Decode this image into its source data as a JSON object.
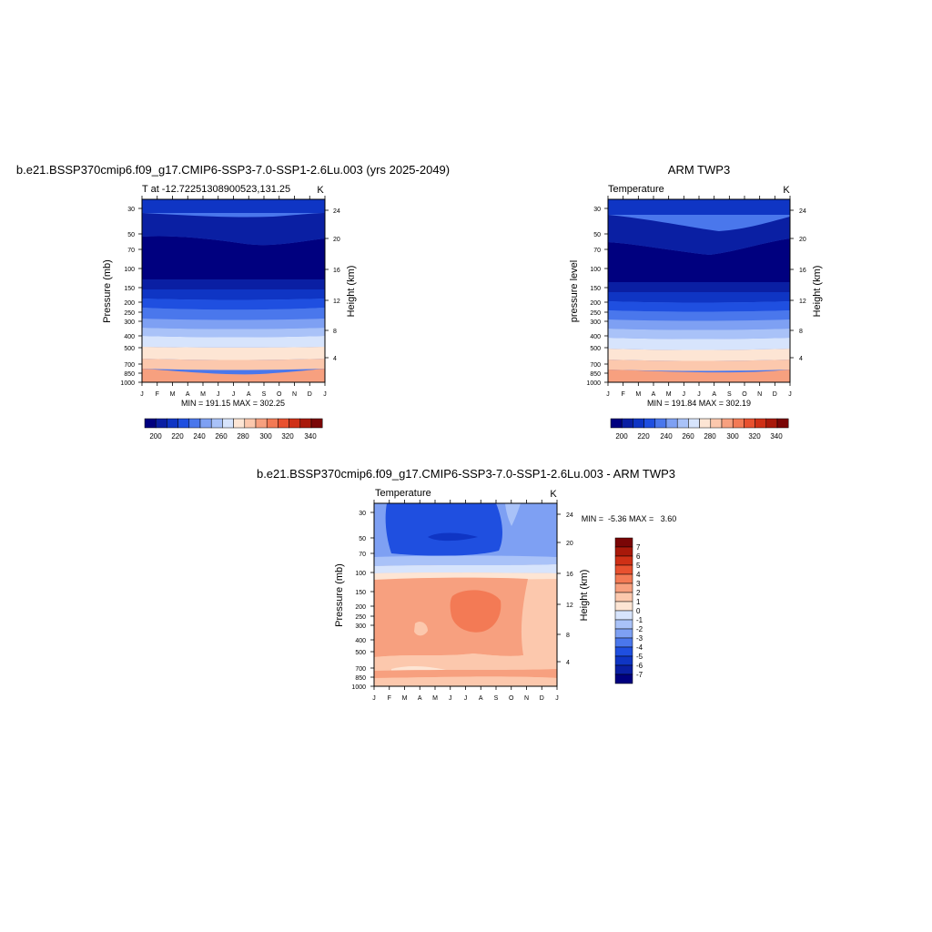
{
  "chart_data": [
    {
      "type": "heatmap",
      "title": "b.e21.BSSP370cmip6.f09_g17.CMIP6-SSP3-7.0-SSP1-2.6Lu.003 (yrs 2025-2049)",
      "left_label": "T at -12.72251308900523,131.25",
      "right_label": "K",
      "ylabel": "Pressure (mb)",
      "ylabel_right": "Height (km)",
      "x": [
        "J",
        "F",
        "M",
        "A",
        "M",
        "J",
        "J",
        "A",
        "S",
        "O",
        "N",
        "D",
        "J"
      ],
      "y_ticks": [
        "30",
        "50",
        "70",
        "100",
        "150",
        "200",
        "250",
        "300",
        "400",
        "500",
        "700",
        "850",
        "1000"
      ],
      "y_right_ticks": [
        "24",
        "20",
        "16",
        "12",
        "8",
        "4"
      ],
      "stats": "MIN = 191.15 MAX = 302.25",
      "colorbar": {
        "labels": [
          "200",
          "220",
          "240",
          "260",
          "280",
          "300",
          "320",
          "340"
        ],
        "colors": [
          "#00007f",
          "#0a1fa3",
          "#0f35c4",
          "#1f4fe0",
          "#4a77ec",
          "#7ea0f3",
          "#a9c2f8",
          "#d7e4fc",
          "#fde5d4",
          "#fcc8ad",
          "#f7a07f",
          "#f37a55",
          "#e8512f",
          "#cf3016",
          "#a9190a",
          "#7a0606"
        ]
      },
      "levels_celsius_like": "K",
      "series_description_values": [
        191.15,
        302.25
      ]
    },
    {
      "type": "heatmap",
      "title": "ARM TWP3",
      "left_label": "Temperature",
      "right_label": "K",
      "ylabel": "pressure level",
      "ylabel_right": "Height (km)",
      "x": [
        "J",
        "F",
        "M",
        "A",
        "M",
        "J",
        "J",
        "A",
        "S",
        "O",
        "N",
        "D",
        "J"
      ],
      "y_ticks": [
        "30",
        "50",
        "70",
        "100",
        "150",
        "200",
        "250",
        "300",
        "400",
        "500",
        "700",
        "850",
        "1000"
      ],
      "y_right_ticks": [
        "24",
        "20",
        "16",
        "12",
        "8",
        "4"
      ],
      "stats": "MIN = 191.84 MAX = 302.19",
      "colorbar": {
        "labels": [
          "200",
          "220",
          "240",
          "260",
          "280",
          "300",
          "320",
          "340"
        ],
        "colors": [
          "#00007f",
          "#0a1fa3",
          "#0f35c4",
          "#1f4fe0",
          "#4a77ec",
          "#7ea0f3",
          "#a9c2f8",
          "#d7e4fc",
          "#fde5d4",
          "#fcc8ad",
          "#f7a07f",
          "#f37a55",
          "#e8512f",
          "#cf3016",
          "#a9190a",
          "#7a0606"
        ]
      },
      "series_description_values": [
        191.84,
        302.19
      ]
    },
    {
      "type": "heatmap",
      "title": "b.e21.BSSP370cmip6.f09_g17.CMIP6-SSP3-7.0-SSP1-2.6Lu.003 - ARM TWP3",
      "left_label": "Temperature",
      "right_label": "K",
      "ylabel": "Pressure (mb)",
      "ylabel_right": "Height (km)",
      "x": [
        "J",
        "F",
        "M",
        "A",
        "M",
        "J",
        "J",
        "A",
        "S",
        "O",
        "N",
        "D",
        "J"
      ],
      "y_ticks": [
        "30",
        "50",
        "70",
        "100",
        "150",
        "200",
        "250",
        "300",
        "400",
        "500",
        "700",
        "850",
        "1000"
      ],
      "y_right_ticks": [
        "24",
        "20",
        "16",
        "12",
        "8",
        "4"
      ],
      "stats": "MIN =  -5.36 MAX =   3.60",
      "colorbar": {
        "labels": [
          "7",
          "6",
          "5",
          "4",
          "3",
          "2",
          "1",
          "0",
          "-1",
          "-2",
          "-3",
          "-4",
          "-5",
          "-6",
          "-7"
        ],
        "colors": [
          "#7a0606",
          "#a9190a",
          "#cf3016",
          "#e8512f",
          "#f37a55",
          "#f7a07f",
          "#fcc8ad",
          "#fde5d4",
          "#d7e4fc",
          "#a9c2f8",
          "#7ea0f3",
          "#4a77ec",
          "#1f4fe0",
          "#0f35c4",
          "#0a1fa3",
          "#00007f"
        ]
      },
      "series_description_values": [
        -5.36,
        3.6
      ]
    }
  ]
}
